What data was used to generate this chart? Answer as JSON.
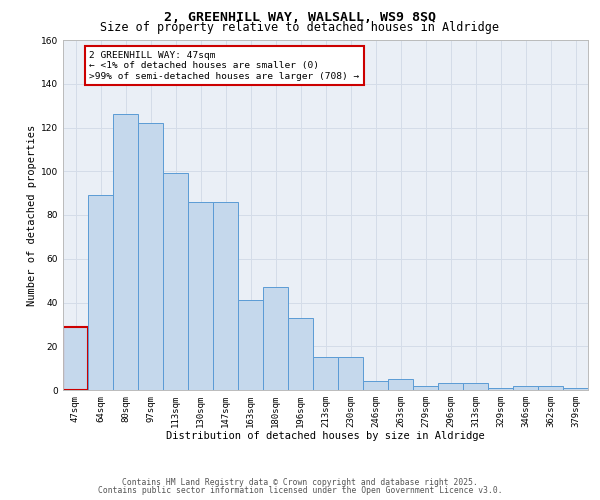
{
  "title_line1": "2, GREENHILL WAY, WALSALL, WS9 8SQ",
  "title_line2": "Size of property relative to detached houses in Aldridge",
  "xlabel": "Distribution of detached houses by size in Aldridge",
  "ylabel": "Number of detached properties",
  "categories": [
    "47sqm",
    "64sqm",
    "80sqm",
    "97sqm",
    "113sqm",
    "130sqm",
    "147sqm",
    "163sqm",
    "180sqm",
    "196sqm",
    "213sqm",
    "230sqm",
    "246sqm",
    "263sqm",
    "279sqm",
    "296sqm",
    "313sqm",
    "329sqm",
    "346sqm",
    "362sqm",
    "379sqm"
  ],
  "values": [
    29,
    89,
    126,
    122,
    99,
    86,
    86,
    41,
    47,
    33,
    15,
    15,
    4,
    5,
    2,
    3,
    3,
    1,
    2,
    2,
    1
  ],
  "bar_color": "#c5d8ec",
  "bar_edge_color": "#5b9bd5",
  "highlight_index": 0,
  "highlight_edge_color": "#cc0000",
  "annotation_text": "2 GREENHILL WAY: 47sqm\n← <1% of detached houses are smaller (0)\n>99% of semi-detached houses are larger (708) →",
  "annotation_box_color": "#ffffff",
  "annotation_box_edge": "#cc0000",
  "ylim": [
    0,
    160
  ],
  "yticks": [
    0,
    20,
    40,
    60,
    80,
    100,
    120,
    140,
    160
  ],
  "grid_color": "#d4dce8",
  "background_color": "#eaeff6",
  "footer_line1": "Contains HM Land Registry data © Crown copyright and database right 2025.",
  "footer_line2": "Contains public sector information licensed under the Open Government Licence v3.0.",
  "title_fontsize": 9.5,
  "subtitle_fontsize": 8.5,
  "tick_fontsize": 6.5,
  "label_fontsize": 7.5,
  "annotation_fontsize": 6.8,
  "footer_fontsize": 5.8
}
